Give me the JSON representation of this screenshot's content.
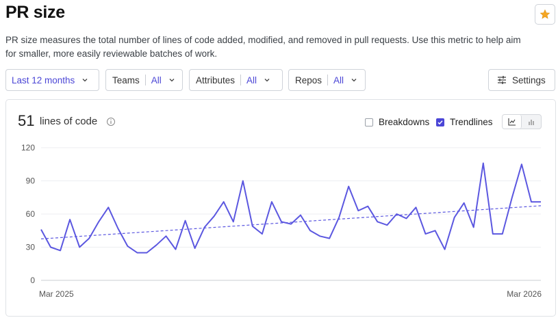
{
  "header": {
    "title": "PR size",
    "favorite_icon": "star-icon"
  },
  "description": "PR size measures the total number of lines of code added, modified, and removed in pull requests. Use this metric to help aim for smaller, more easily reviewable batches of work.",
  "filters": {
    "period": {
      "value": "Last 12 months"
    },
    "teams": {
      "label": "Teams",
      "value": "All"
    },
    "attributes": {
      "label": "Attributes",
      "value": "All"
    },
    "repos": {
      "label": "Repos",
      "value": "All"
    }
  },
  "settings": {
    "label": "Settings",
    "icon": "sliders-icon"
  },
  "summary": {
    "value": "51",
    "unit": "lines of code",
    "info_icon": "info-icon"
  },
  "options": {
    "breakdowns": {
      "label": "Breakdowns",
      "checked": false
    },
    "trendlines": {
      "label": "Trendlines",
      "checked": true
    }
  },
  "view_toggle": {
    "options": [
      "line-chart-icon",
      "bar-chart-icon"
    ],
    "selected": "line-chart-icon"
  },
  "colors": {
    "accent": "#4b46d6",
    "line": "#5b57e0",
    "star": "#f5a623"
  },
  "chart_data": {
    "type": "line",
    "xlabel": "",
    "ylabel": "",
    "x_tick_labels": [
      "Mar 2025",
      "Mar 2026"
    ],
    "ylim": [
      0,
      120
    ],
    "yticks": [
      0,
      30,
      60,
      90,
      120
    ],
    "grid": true,
    "series": [
      {
        "values": [
          46,
          30,
          27,
          55,
          30,
          38,
          53,
          66,
          47,
          31,
          25,
          25,
          32,
          40,
          28,
          54,
          29,
          48,
          58,
          71,
          53,
          90,
          49,
          42,
          71,
          53,
          51,
          59,
          45,
          40,
          38,
          57,
          85,
          63,
          67,
          53,
          50,
          60,
          56,
          66,
          42,
          45,
          28,
          57,
          70,
          48,
          106,
          42,
          42,
          75,
          105,
          71,
          71
        ]
      }
    ],
    "trendline": {
      "start": 37.5,
      "end": 67.5,
      "style": "dashed"
    }
  }
}
